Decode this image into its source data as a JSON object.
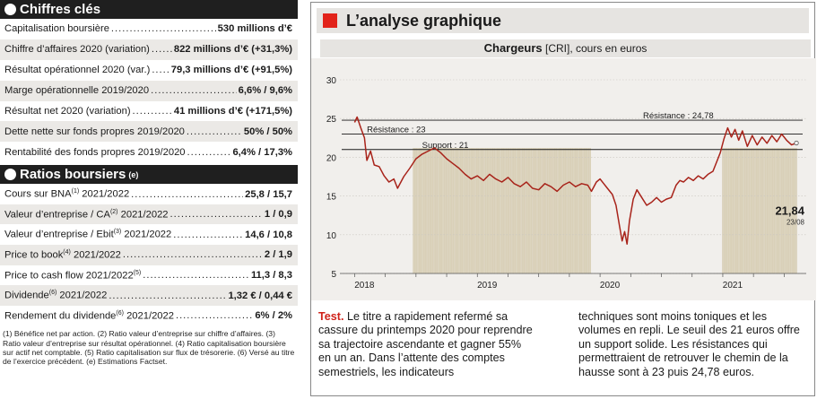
{
  "chiffres": {
    "title": "Chiffres clés",
    "rows": [
      {
        "label": "Capitalisation boursière",
        "value": "530 millions d’€"
      },
      {
        "label": "Chiffre d’affaires 2020 (variation)",
        "value": "822 millions d’€ (+31,3%)"
      },
      {
        "label": "Résultat opérationnel 2020 (var.)",
        "value": "79,3 millions d’€ (+91,5%)"
      },
      {
        "label": "Marge opérationnelle 2019/2020",
        "value": "6,6% / 9,6%"
      },
      {
        "label": "Résultat net 2020 (variation)",
        "value": "41 millions d’€ (+171,5%)"
      },
      {
        "label": "Dette nette sur fonds propres 2019/2020",
        "value": "50% / 50%"
      },
      {
        "label": "Rentabilité des fonds propres 2019/2020",
        "value": "6,4% / 17,3%"
      }
    ]
  },
  "ratios": {
    "title": "Ratios boursiers",
    "title_note": "(e)",
    "rows": [
      {
        "label": "Cours sur BNA",
        "note": "(1)",
        "suffix": " 2021/2022",
        "value": "25,8 / 15,7"
      },
      {
        "label": "Valeur d’entreprise / CA",
        "note": "(2)",
        "suffix": " 2021/2022",
        "value": "1 / 0,9"
      },
      {
        "label": "Valeur d’entreprise / Ebit",
        "note": "(3)",
        "suffix": " 2021/2022",
        "value": "14,6 / 10,8"
      },
      {
        "label": "Price to book",
        "note": "(4)",
        "suffix": " 2021/2022",
        "value": "2 / 1,9"
      },
      {
        "label": "Price to cash flow 2021/2022",
        "note": "(5)",
        "suffix": "",
        "value": "11,3 / 8,3"
      },
      {
        "label": "Dividende",
        "note": "(6)",
        "suffix": " 2021/2022",
        "value": "1,32 € / 0,44 €"
      },
      {
        "label": "Rendement du dividende",
        "note": "(6)",
        "suffix": " 2021/2022",
        "value": "6% / 2%"
      }
    ]
  },
  "notes": "(1) Bénéfice net par action. (2) Ratio valeur d’entreprise sur chiffre d’affaires. (3) Ratio valeur d’entreprise sur résultat opérationnel. (4) Ratio capitalisation boursière sur actif net comptable. (5) Ratio capitalisation sur flux de trésorerie. (6) Versé au titre de l’exercice précédent. (e) Estimations Factset.",
  "analyse": {
    "title": "L’analyse graphique",
    "chart_name": "Chargeurs",
    "chart_ticker": "[CRI], cours en euros",
    "accent": "#e2231a",
    "text_lead": "Test.",
    "text_col1": " Le titre a rapidement refermé sa cassure du printemps 2020 pour reprendre sa trajectoire ascendante et gagner 55% en un an. Dans l’attente des comptes semestriels, les indicateurs",
    "text_col2": "techniques sont moins toniques et les volumes en repli. Le seuil des 21 euros offre un support solide. Les résistances qui permettraient de retrouver le chemin de la hausse sont à 23 puis 24,78 euros."
  },
  "chart_data": {
    "type": "line",
    "ylim": [
      5,
      30
    ],
    "yticks": [
      5,
      10,
      15,
      20,
      25,
      30
    ],
    "xticks": [
      "2018",
      "2019",
      "2020",
      "2021"
    ],
    "last_value": "21,84",
    "last_date": "23/08",
    "levels": [
      {
        "label": "Résistance : 24,78",
        "value": 24.78
      },
      {
        "label": "Résistance : 23",
        "value": 23
      },
      {
        "label": "Support : 21",
        "value": 21
      }
    ],
    "line_color": "#a8231a",
    "series": [
      {
        "t": 2018.0,
        "y": 24.5
      },
      {
        "t": 2018.02,
        "y": 25.2
      },
      {
        "t": 2018.05,
        "y": 23.8
      },
      {
        "t": 2018.08,
        "y": 22.5
      },
      {
        "t": 2018.1,
        "y": 19.6
      },
      {
        "t": 2018.13,
        "y": 20.8
      },
      {
        "t": 2018.16,
        "y": 19.0
      },
      {
        "t": 2018.2,
        "y": 18.8
      },
      {
        "t": 2018.24,
        "y": 17.6
      },
      {
        "t": 2018.28,
        "y": 16.8
      },
      {
        "t": 2018.32,
        "y": 17.2
      },
      {
        "t": 2018.35,
        "y": 16.0
      },
      {
        "t": 2018.4,
        "y": 17.5
      },
      {
        "t": 2018.45,
        "y": 18.6
      },
      {
        "t": 2018.5,
        "y": 19.8
      },
      {
        "t": 2018.55,
        "y": 20.4
      },
      {
        "t": 2018.6,
        "y": 20.8
      },
      {
        "t": 2018.65,
        "y": 21.2
      },
      {
        "t": 2018.7,
        "y": 20.6
      },
      {
        "t": 2018.75,
        "y": 19.8
      },
      {
        "t": 2018.8,
        "y": 19.2
      },
      {
        "t": 2018.85,
        "y": 18.6
      },
      {
        "t": 2018.9,
        "y": 17.8
      },
      {
        "t": 2018.95,
        "y": 17.2
      },
      {
        "t": 2019.0,
        "y": 17.6
      },
      {
        "t": 2019.05,
        "y": 17.0
      },
      {
        "t": 2019.1,
        "y": 17.8
      },
      {
        "t": 2019.15,
        "y": 17.2
      },
      {
        "t": 2019.2,
        "y": 16.8
      },
      {
        "t": 2019.25,
        "y": 17.4
      },
      {
        "t": 2019.3,
        "y": 16.6
      },
      {
        "t": 2019.35,
        "y": 16.2
      },
      {
        "t": 2019.4,
        "y": 16.8
      },
      {
        "t": 2019.45,
        "y": 16.0
      },
      {
        "t": 2019.5,
        "y": 15.8
      },
      {
        "t": 2019.55,
        "y": 16.6
      },
      {
        "t": 2019.6,
        "y": 16.2
      },
      {
        "t": 2019.65,
        "y": 15.6
      },
      {
        "t": 2019.7,
        "y": 16.4
      },
      {
        "t": 2019.75,
        "y": 16.8
      },
      {
        "t": 2019.8,
        "y": 16.2
      },
      {
        "t": 2019.85,
        "y": 16.6
      },
      {
        "t": 2019.9,
        "y": 16.4
      },
      {
        "t": 2019.93,
        "y": 15.6
      },
      {
        "t": 2019.97,
        "y": 16.8
      },
      {
        "t": 2020.0,
        "y": 17.2
      },
      {
        "t": 2020.03,
        "y": 16.6
      },
      {
        "t": 2020.06,
        "y": 16.0
      },
      {
        "t": 2020.1,
        "y": 15.2
      },
      {
        "t": 2020.13,
        "y": 13.8
      },
      {
        "t": 2020.16,
        "y": 11.0
      },
      {
        "t": 2020.18,
        "y": 9.2
      },
      {
        "t": 2020.2,
        "y": 10.4
      },
      {
        "t": 2020.22,
        "y": 8.8
      },
      {
        "t": 2020.24,
        "y": 11.8
      },
      {
        "t": 2020.27,
        "y": 14.6
      },
      {
        "t": 2020.3,
        "y": 15.8
      },
      {
        "t": 2020.34,
        "y": 14.8
      },
      {
        "t": 2020.38,
        "y": 13.8
      },
      {
        "t": 2020.42,
        "y": 14.2
      },
      {
        "t": 2020.46,
        "y": 14.8
      },
      {
        "t": 2020.5,
        "y": 14.2
      },
      {
        "t": 2020.54,
        "y": 14.6
      },
      {
        "t": 2020.58,
        "y": 14.8
      },
      {
        "t": 2020.62,
        "y": 16.4
      },
      {
        "t": 2020.65,
        "y": 17.0
      },
      {
        "t": 2020.68,
        "y": 16.8
      },
      {
        "t": 2020.72,
        "y": 17.4
      },
      {
        "t": 2020.76,
        "y": 17.0
      },
      {
        "t": 2020.8,
        "y": 17.6
      },
      {
        "t": 2020.84,
        "y": 17.2
      },
      {
        "t": 2020.88,
        "y": 17.8
      },
      {
        "t": 2020.92,
        "y": 18.2
      },
      {
        "t": 2020.95,
        "y": 19.4
      },
      {
        "t": 2020.98,
        "y": 20.6
      },
      {
        "t": 2021.01,
        "y": 22.4
      },
      {
        "t": 2021.04,
        "y": 23.8
      },
      {
        "t": 2021.07,
        "y": 22.6
      },
      {
        "t": 2021.1,
        "y": 23.6
      },
      {
        "t": 2021.13,
        "y": 22.2
      },
      {
        "t": 2021.16,
        "y": 23.4
      },
      {
        "t": 2021.2,
        "y": 21.4
      },
      {
        "t": 2021.24,
        "y": 22.8
      },
      {
        "t": 2021.28,
        "y": 21.6
      },
      {
        "t": 2021.32,
        "y": 22.6
      },
      {
        "t": 2021.36,
        "y": 21.8
      },
      {
        "t": 2021.4,
        "y": 22.8
      },
      {
        "t": 2021.44,
        "y": 22.0
      },
      {
        "t": 2021.48,
        "y": 23.0
      },
      {
        "t": 2021.52,
        "y": 22.2
      },
      {
        "t": 2021.56,
        "y": 21.6
      },
      {
        "t": 2021.6,
        "y": 21.84
      }
    ]
  }
}
